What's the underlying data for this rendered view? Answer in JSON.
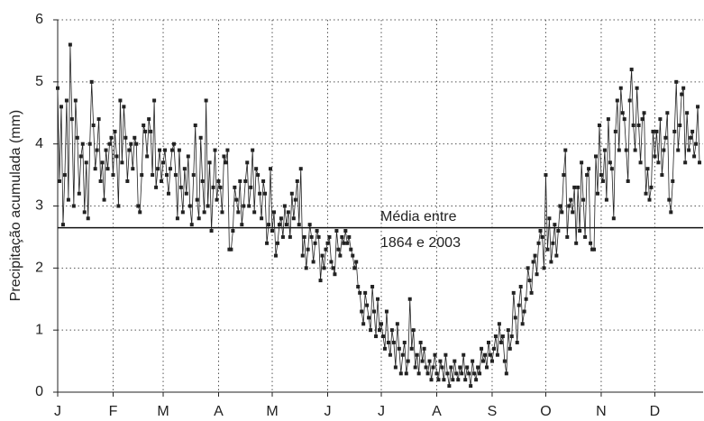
{
  "chart_data": {
    "type": "line",
    "y_label": "Precipitação acumulada (mm)",
    "x": [
      1,
      2,
      3,
      4,
      5,
      6,
      7,
      8,
      9,
      10,
      11,
      12,
      13,
      14,
      15,
      16,
      17,
      18,
      19,
      20,
      21,
      22,
      23,
      24,
      25,
      26,
      27,
      28,
      29,
      30,
      31,
      32,
      33,
      34,
      35,
      36,
      37,
      38,
      39,
      40,
      41,
      42,
      43,
      44,
      45,
      46,
      47,
      48,
      49,
      50,
      51,
      52,
      53,
      54,
      55,
      56,
      57,
      58,
      59,
      60,
      61,
      62,
      63,
      64,
      65,
      66,
      67,
      68,
      69,
      70,
      71,
      72,
      73,
      74,
      75,
      76,
      77,
      78,
      79,
      80,
      81,
      82,
      83,
      84,
      85,
      86,
      87,
      88,
      89,
      90,
      91,
      92,
      93,
      94,
      95,
      96,
      97,
      98,
      99,
      100,
      101,
      102,
      103,
      104,
      105,
      106,
      107,
      108,
      109,
      110,
      111,
      112,
      113,
      114,
      115,
      116,
      117,
      118,
      119,
      120,
      121,
      122,
      123,
      124,
      125,
      126,
      127,
      128,
      129,
      130,
      131,
      132,
      133,
      134,
      135,
      136,
      137,
      138,
      139,
      140,
      141,
      142,
      143,
      144,
      145,
      146,
      147,
      148,
      149,
      150,
      151,
      152,
      153,
      154,
      155,
      156,
      157,
      158,
      159,
      160,
      161,
      162,
      163,
      164,
      165,
      166,
      167,
      168,
      169,
      170,
      171,
      172,
      173,
      174,
      175,
      176,
      177,
      178,
      179,
      180,
      181,
      182,
      183,
      184,
      185,
      186,
      187,
      188,
      189,
      190,
      191,
      192,
      193,
      194,
      195,
      196,
      197,
      198,
      199,
      200,
      201,
      202,
      203,
      204,
      205,
      206,
      207,
      208,
      209,
      210,
      211,
      212,
      213,
      214,
      215,
      216,
      217,
      218,
      219,
      220,
      221,
      222,
      223,
      224,
      225,
      226,
      227,
      228,
      229,
      230,
      231,
      232,
      233,
      234,
      235,
      236,
      237,
      238,
      239,
      240,
      241,
      242,
      243,
      244,
      245,
      246,
      247,
      248,
      249,
      250,
      251,
      252,
      253,
      254,
      255,
      256,
      257,
      258,
      259,
      260,
      261,
      262,
      263,
      264,
      265,
      266,
      267,
      268,
      269,
      270,
      271,
      272,
      273,
      274,
      275,
      276,
      277,
      278,
      279,
      280,
      281,
      282,
      283,
      284,
      285,
      286,
      287,
      288,
      289,
      290,
      291,
      292,
      293,
      294,
      295,
      296,
      297,
      298,
      299,
      300,
      301,
      302,
      303,
      304,
      305,
      306,
      307,
      308,
      309,
      310,
      311,
      312,
      313,
      314,
      315,
      316,
      317,
      318,
      319,
      320,
      321,
      322,
      323,
      324,
      325,
      326,
      327,
      328,
      329,
      330,
      331,
      332,
      333,
      334,
      335,
      336,
      337,
      338,
      339,
      340,
      341,
      342,
      343,
      344,
      345,
      346,
      347,
      348,
      349,
      350,
      351,
      352,
      353,
      354,
      355,
      356,
      357,
      358,
      359,
      360
    ],
    "series": [
      {
        "color": "#222222",
        "values": [
          4.9,
          3.4,
          4.6,
          2.7,
          3.5,
          4.7,
          3.1,
          5.6,
          4.4,
          3.0,
          4.7,
          4.1,
          3.2,
          3.8,
          4.0,
          2.9,
          3.7,
          2.8,
          4.0,
          5.0,
          4.3,
          3.6,
          3.9,
          4.4,
          3.4,
          3.7,
          3.1,
          3.9,
          3.6,
          4.0,
          4.1,
          3.5,
          4.2,
          3.8,
          3.0,
          4.7,
          3.7,
          4.6,
          4.1,
          3.4,
          3.9,
          4.0,
          3.6,
          4.1,
          4.0,
          3.0,
          2.9,
          3.5,
          4.3,
          4.2,
          3.8,
          4.4,
          4.2,
          3.5,
          4.7,
          3.3,
          3.6,
          3.9,
          3.4,
          3.7,
          3.9,
          3.5,
          3.2,
          3.6,
          3.9,
          4.0,
          3.5,
          2.8,
          3.9,
          3.3,
          2.9,
          3.6,
          3.2,
          3.8,
          3.0,
          2.7,
          3.5,
          4.3,
          3.1,
          2.8,
          4.1,
          3.4,
          2.9,
          4.7,
          3.0,
          3.7,
          2.6,
          3.3,
          3.9,
          3.1,
          3.4,
          3.3,
          2.9,
          3.8,
          3.7,
          3.9,
          2.3,
          2.3,
          2.6,
          3.3,
          3.1,
          2.9,
          3.4,
          2.7,
          3.0,
          3.4,
          3.7,
          3.0,
          3.3,
          3.9,
          2.9,
          3.6,
          3.5,
          3.2,
          2.8,
          3.4,
          3.2,
          2.4,
          2.7,
          3.6,
          2.6,
          2.9,
          2.2,
          2.4,
          2.7,
          2.8,
          2.5,
          3.0,
          2.7,
          2.9,
          2.5,
          3.2,
          2.8,
          3.1,
          3.4,
          2.7,
          3.6,
          2.2,
          2.5,
          2.0,
          2.3,
          2.7,
          2.5,
          2.1,
          2.4,
          2.6,
          2.5,
          1.8,
          2.2,
          2.0,
          2.3,
          2.4,
          2.5,
          2.1,
          2.0,
          1.9,
          2.6,
          2.3,
          2.2,
          2.5,
          2.4,
          2.6,
          2.4,
          2.5,
          2.3,
          2.2,
          2.0,
          2.1,
          1.7,
          1.6,
          1.3,
          1.1,
          1.6,
          1.4,
          1.2,
          1.0,
          1.7,
          1.3,
          0.9,
          1.5,
          1.0,
          1.1,
          0.9,
          0.7,
          1.3,
          0.8,
          0.6,
          1.0,
          0.8,
          0.4,
          1.1,
          0.7,
          0.3,
          0.6,
          0.8,
          0.3,
          0.5,
          1.5,
          0.7,
          1.0,
          0.4,
          0.6,
          0.3,
          0.8,
          0.5,
          0.7,
          0.4,
          0.3,
          0.5,
          0.2,
          0.4,
          0.6,
          0.3,
          0.2,
          0.5,
          0.4,
          0.2,
          0.6,
          0.3,
          0.1,
          0.4,
          0.2,
          0.5,
          0.3,
          0.2,
          0.4,
          0.3,
          0.6,
          0.2,
          0.4,
          0.3,
          0.1,
          0.5,
          0.3,
          0.2,
          0.4,
          0.3,
          0.7,
          0.5,
          0.6,
          0.4,
          0.8,
          0.6,
          0.5,
          0.7,
          0.9,
          0.6,
          1.1,
          0.8,
          0.9,
          0.5,
          0.3,
          1.0,
          0.7,
          0.9,
          1.6,
          1.2,
          0.8,
          1.4,
          1.7,
          1.1,
          1.3,
          1.5,
          2.0,
          1.8,
          1.6,
          2.1,
          2.2,
          1.9,
          2.4,
          2.6,
          2.5,
          2.0,
          3.5,
          2.3,
          2.8,
          2.1,
          2.4,
          2.7,
          2.2,
          2.6,
          3.0,
          2.9,
          3.5,
          3.9,
          2.5,
          3.0,
          3.1,
          2.9,
          3.3,
          2.4,
          3.3,
          2.6,
          3.7,
          3.1,
          2.5,
          3.5,
          3.6,
          2.4,
          2.3,
          2.3,
          3.8,
          3.2,
          4.3,
          3.5,
          3.4,
          3.9,
          3.1,
          4.4,
          3.7,
          3.6,
          2.8,
          4.2,
          4.7,
          3.9,
          4.9,
          4.5,
          4.4,
          3.9,
          3.4,
          4.7,
          5.2,
          4.3,
          3.9,
          4.9,
          4.3,
          3.7,
          4.4,
          4.5,
          3.2,
          3.6,
          3.1,
          3.3,
          4.2,
          3.8,
          4.2,
          3.7,
          4.4,
          3.5,
          3.9,
          4.1,
          4.5,
          3.1,
          2.9,
          3.4,
          4.2,
          5.0,
          3.9,
          4.3,
          4.8,
          4.9,
          3.7,
          4.5,
          3.9,
          4.1,
          4.2,
          3.8,
          4.0,
          4.6,
          3.7
        ]
      }
    ],
    "reference_line": {
      "value": 2.65,
      "label": [
        "Média entre",
        "1864 e 2003"
      ]
    },
    "xlim": [
      1,
      362
    ],
    "xticks": [
      {
        "value": 1,
        "label": "J"
      },
      {
        "value": 32,
        "label": "F"
      },
      {
        "value": 60,
        "label": "M"
      },
      {
        "value": 91,
        "label": "A"
      },
      {
        "value": 121,
        "label": "M"
      },
      {
        "value": 152,
        "label": "J"
      },
      {
        "value": 182,
        "label": "J"
      },
      {
        "value": 213,
        "label": "A"
      },
      {
        "value": 244,
        "label": "S"
      },
      {
        "value": 274,
        "label": "O"
      },
      {
        "value": 305,
        "label": "N"
      },
      {
        "value": 335,
        "label": "D"
      }
    ],
    "ylim": [
      0,
      6
    ],
    "yticks": [
      0,
      1,
      2,
      3,
      4,
      5,
      6
    ],
    "grid": true
  }
}
